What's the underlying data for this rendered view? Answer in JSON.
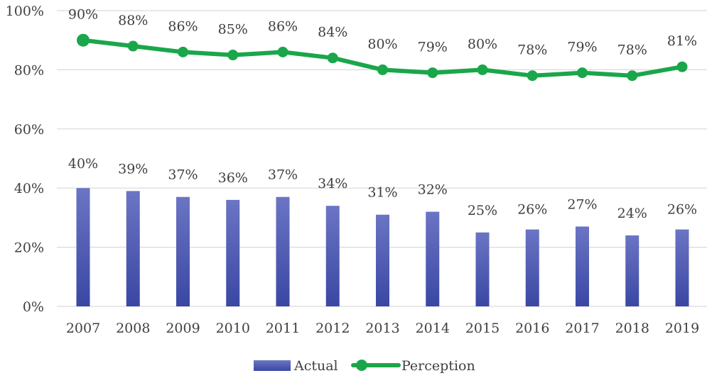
{
  "chart_data": {
    "type": "bar",
    "categories": [
      "2007",
      "2008",
      "2009",
      "2010",
      "2011",
      "2012",
      "2013",
      "2014",
      "2015",
      "2016",
      "2017",
      "2018",
      "2019"
    ],
    "series": [
      {
        "name": "Actual",
        "type": "bar",
        "values": [
          40,
          39,
          37,
          36,
          37,
          34,
          31,
          32,
          25,
          26,
          27,
          24,
          26
        ],
        "labels": [
          "40%",
          "39%",
          "37%",
          "36%",
          "37%",
          "34%",
          "31%",
          "32%",
          "25%",
          "26%",
          "27%",
          "24%",
          "26%"
        ]
      },
      {
        "name": "Perception",
        "type": "line",
        "values": [
          90,
          88,
          86,
          85,
          86,
          84,
          80,
          79,
          80,
          78,
          79,
          78,
          81
        ],
        "labels": [
          "90%",
          "88%",
          "86%",
          "85%",
          "86%",
          "84%",
          "80%",
          "79%",
          "80%",
          "78%",
          "79%",
          "78%",
          "81%"
        ]
      }
    ],
    "y_ticks": [
      "0%",
      "20%",
      "40%",
      "60%",
      "80%",
      "100%"
    ],
    "ylim": [
      0,
      100
    ],
    "grid": true,
    "legend_position": "bottom",
    "colors": {
      "bar_top": "#6b75c4",
      "bar_bottom": "#3a47a3",
      "line": "#1aa64a",
      "grid": "#d9d9d9",
      "text": "#404040"
    }
  }
}
